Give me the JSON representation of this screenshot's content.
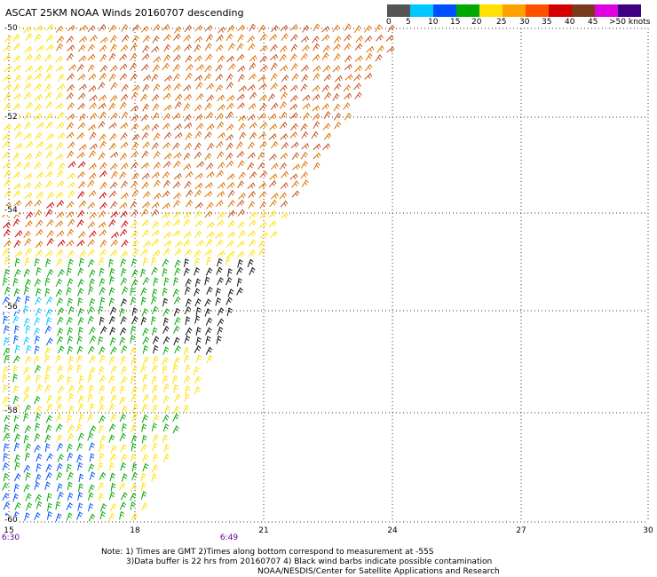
{
  "title": "ASCAT 25KM NOAA Winds 20160707 descending",
  "legend": {
    "swatches": [
      {
        "range": "0-5",
        "color": "#555555"
      },
      {
        "range": "5-10",
        "color": "#00c8ff"
      },
      {
        "range": "10-15",
        "color": "#0050ff"
      },
      {
        "range": "15-20",
        "color": "#00a800"
      },
      {
        "range": "20-25",
        "color": "#ffe000"
      },
      {
        "range": "25-30",
        "color": "#ffa000"
      },
      {
        "range": "30-35",
        "color": "#ff5000"
      },
      {
        "range": "35-40",
        "color": "#d40000"
      },
      {
        "range": "40-45",
        "color": "#7a3a1a"
      },
      {
        "range": "45-50",
        "color": "#e000e0"
      },
      {
        "range": ">50",
        "color": "#3c0080"
      }
    ],
    "labels": [
      "0",
      "5",
      "10",
      "15",
      "20",
      "25",
      "30",
      "35",
      "40",
      "45",
      ">50 knots"
    ]
  },
  "axes": {
    "lat_labels": [
      "-50",
      "-52",
      "-54",
      "-56",
      "-58",
      "-60"
    ],
    "lon_labels": [
      "15",
      "18",
      "21",
      "24",
      "27",
      "30"
    ],
    "time_labels": [
      "6:30",
      "6:49"
    ]
  },
  "notes": {
    "line1": "Note: 1) Times are GMT 2)Times along bottom correspond to measurement at -55S",
    "line2": "3)Data buffer is 22 hrs from 20160707 4) Black wind barbs indicate possible contamination",
    "line3": "NOAA/NESDIS/Center for Satellite Applications and Research"
  },
  "colors": {
    "grid": "#333333",
    "time_label": "#6a0090"
  }
}
